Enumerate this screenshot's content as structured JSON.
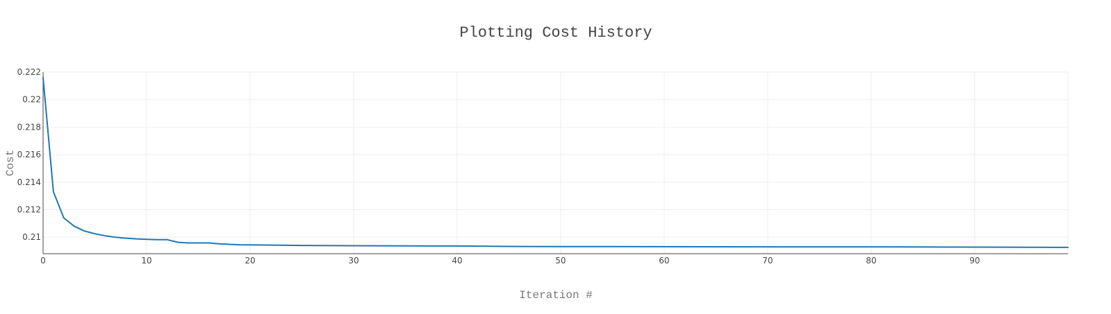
{
  "chart_data": {
    "type": "line",
    "title": "Plotting Cost History",
    "xlabel": "Iteration #",
    "ylabel": "Cost",
    "xlim": [
      0,
      99
    ],
    "ylim": [
      0.2088,
      0.222
    ],
    "grid": true,
    "line_color": "#1f77b4",
    "grid_color": "#eeeeee",
    "axis_color": "#444444",
    "x_ticks": [
      0,
      10,
      20,
      30,
      40,
      50,
      60,
      70,
      80,
      90
    ],
    "x_tick_labels": [
      "0",
      "10",
      "20",
      "30",
      "40",
      "50",
      "60",
      "70",
      "80",
      "90"
    ],
    "y_ticks": [
      0.21,
      0.212,
      0.214,
      0.216,
      0.218,
      0.22,
      0.222
    ],
    "y_tick_labels": [
      "0.21",
      "0.212",
      "0.214",
      "0.216",
      "0.218",
      "0.22",
      "0.222"
    ],
    "series": [
      {
        "x": [
          0,
          1,
          2,
          3,
          4,
          5,
          6,
          7,
          8,
          9,
          10,
          11,
          12,
          13,
          14,
          15,
          16,
          17,
          18,
          19,
          20,
          25,
          30,
          40,
          45,
          50,
          60,
          70,
          80,
          90,
          99
        ],
        "values": [
          0.2216,
          0.2133,
          0.2114,
          0.2108,
          0.21045,
          0.21025,
          0.2101,
          0.21,
          0.20993,
          0.20988,
          0.20985,
          0.20982,
          0.20982,
          0.20963,
          0.20958,
          0.20958,
          0.20958,
          0.20952,
          0.20948,
          0.20945,
          0.20944,
          0.2094,
          0.20938,
          0.20936,
          0.20933,
          0.20932,
          0.20931,
          0.2093,
          0.2093,
          0.20928,
          0.20926
        ]
      }
    ]
  }
}
